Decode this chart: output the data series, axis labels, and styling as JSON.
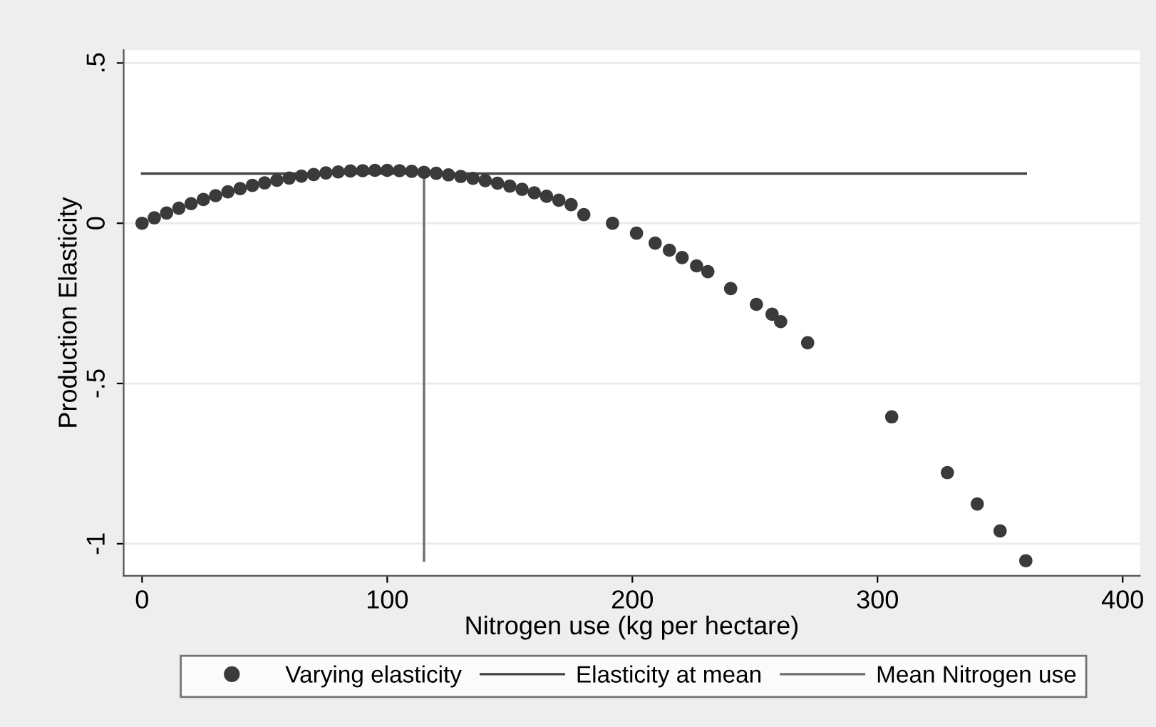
{
  "chart_data": {
    "type": "scatter",
    "xlabel": "Nitrogen use (kg per hectare)",
    "ylabel": "Production Elasticity",
    "xlim": [
      -7.5,
      407
    ],
    "ylim": [
      -1.1,
      0.54
    ],
    "xticks": [
      0,
      100,
      200,
      300,
      400
    ],
    "yticks": [
      {
        "value": -1,
        "label": "-1"
      },
      {
        "value": -0.5,
        "label": "-.5"
      },
      {
        "value": 0,
        "label": "0"
      },
      {
        "value": 0.5,
        "label": ".5"
      }
    ],
    "grid": "y",
    "legend": "bottom",
    "series": [
      {
        "name": "Varying elasticity",
        "marker": "circle",
        "color": "#3a3a3a",
        "x": [
          0,
          5,
          10,
          15,
          20,
          25,
          30,
          35,
          40,
          45,
          50,
          55,
          60,
          65,
          70,
          75,
          80,
          85,
          90,
          95,
          100,
          105,
          110,
          115,
          120,
          125,
          130,
          135,
          140,
          145,
          150,
          155,
          160,
          165,
          170,
          175,
          180.2,
          191.9,
          201.7,
          209.3,
          215.1,
          220.3,
          226.2,
          230.8,
          240.1,
          250.6,
          257,
          260.5,
          271.5,
          305.8,
          328.5,
          340.7,
          350,
          360.5
        ],
        "values": [
          0,
          0.017,
          0.032,
          0.047,
          0.061,
          0.074,
          0.086,
          0.098,
          0.108,
          0.118,
          0.126,
          0.134,
          0.141,
          0.147,
          0.152,
          0.157,
          0.16,
          0.163,
          0.164,
          0.165,
          0.165,
          0.164,
          0.162,
          0.159,
          0.156,
          0.151,
          0.146,
          0.14,
          0.133,
          0.125,
          0.116,
          0.106,
          0.095,
          0.084,
          0.072,
          0.058,
          0.027,
          0,
          -0.031,
          -0.062,
          -0.084,
          -0.107,
          -0.133,
          -0.151,
          -0.204,
          -0.253,
          -0.284,
          -0.307,
          -0.373,
          -0.604,
          -0.778,
          -0.876,
          -0.96,
          -1.053
        ]
      },
      {
        "name": "Elasticity at mean",
        "type": "line",
        "color": "#444444",
        "x": [
          0,
          360.5
        ],
        "values": [
          0.155,
          0.155
        ]
      },
      {
        "name": "Mean Nitrogen use",
        "type": "line",
        "color": "#6e6e6e",
        "x": [
          115,
          115
        ],
        "values": [
          -1.053,
          0.155
        ]
      }
    ]
  }
}
